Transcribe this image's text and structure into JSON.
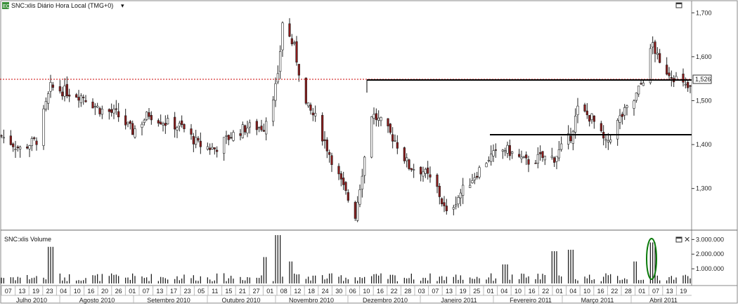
{
  "price_panel": {
    "title": "SNC:xlis Diário Hora Local (TMG+0)",
    "badge": "EQ",
    "current_price_label": "1,526",
    "y_ticks": [
      {
        "value": 1.7,
        "label": "1,700"
      },
      {
        "value": 1.6,
        "label": "1,600"
      },
      {
        "value": 1.5,
        "label": "1,500"
      },
      {
        "value": 1.4,
        "label": "1,400"
      },
      {
        "value": 1.3,
        "label": "1,300"
      }
    ]
  },
  "volume_panel": {
    "title": "SNC:xlis Volume",
    "y_ticks": [
      {
        "value": 3000000,
        "label": "3.000.000"
      },
      {
        "value": 2000000,
        "label": "2.000.000"
      },
      {
        "value": 1000000,
        "label": "1.000.000"
      }
    ]
  },
  "x_axis": {
    "days": [
      "07",
      "13",
      "19",
      "23",
      "04",
      "10",
      "16",
      "20",
      "26",
      "01",
      "07",
      "13",
      "17",
      "23",
      "05",
      "11",
      "15",
      "21",
      "27",
      "01",
      "08",
      "12",
      "18",
      "24",
      "30",
      "06",
      "10",
      "16",
      "22",
      "28",
      "03",
      "07",
      "13",
      "19",
      "25",
      "01",
      "04",
      "10",
      "16",
      "22",
      "01",
      "04",
      "10",
      "16",
      "22",
      "28",
      "01",
      "07",
      "13",
      "19"
    ],
    "months": [
      "Julho 2010",
      "Agosto 2010",
      "Setembro 2010",
      "Outubro 2010",
      "Novembro 2010",
      "Dezembro 2010",
      "Janeiro 2011",
      "Fevereiro 2011",
      "Março 2011",
      "Abril 2011"
    ]
  },
  "chart_data": [
    {
      "type": "candlestick",
      "title": "SNC:xlis Diário Hora Local (TMG+0)",
      "ylim": [
        1.21,
        1.71
      ],
      "current_price": 1.526,
      "reference_lines": [
        {
          "from": "2010-12-06",
          "to": "2011-04-21",
          "value": 1.53
        },
        {
          "from": "2011-02-01",
          "to": "2011-04-21",
          "value": 1.4
        }
      ],
      "closes": [
        [
          "2010-07-01",
          1.42
        ],
        [
          "2010-07-09",
          1.39
        ],
        [
          "2010-07-16",
          1.41
        ],
        [
          "2010-07-22",
          1.53
        ],
        [
          "2010-07-29",
          1.52
        ],
        [
          "2010-08-05",
          1.51
        ],
        [
          "2010-08-12",
          1.48
        ],
        [
          "2010-08-19",
          1.47
        ],
        [
          "2010-08-26",
          1.43
        ],
        [
          "2010-09-02",
          1.47
        ],
        [
          "2010-09-09",
          1.45
        ],
        [
          "2010-09-16",
          1.44
        ],
        [
          "2010-09-23",
          1.4
        ],
        [
          "2010-09-30",
          1.39
        ],
        [
          "2010-10-07",
          1.42
        ],
        [
          "2010-10-14",
          1.44
        ],
        [
          "2010-10-21",
          1.44
        ],
        [
          "2010-10-27",
          1.55
        ],
        [
          "2010-10-29",
          1.68
        ],
        [
          "2010-11-03",
          1.62
        ],
        [
          "2010-11-08",
          1.49
        ],
        [
          "2010-11-12",
          1.46
        ],
        [
          "2010-11-18",
          1.38
        ],
        [
          "2010-11-24",
          1.3
        ],
        [
          "2010-11-29",
          1.24
        ],
        [
          "2010-12-06",
          1.47
        ],
        [
          "2010-12-10",
          1.45
        ],
        [
          "2010-12-16",
          1.41
        ],
        [
          "2010-12-22",
          1.35
        ],
        [
          "2010-12-28",
          1.34
        ],
        [
          "2011-01-03",
          1.3
        ],
        [
          "2011-01-07",
          1.24
        ],
        [
          "2011-01-13",
          1.29
        ],
        [
          "2011-01-19",
          1.33
        ],
        [
          "2011-01-25",
          1.37
        ],
        [
          "2011-02-01",
          1.39
        ],
        [
          "2011-02-04",
          1.38
        ],
        [
          "2011-02-10",
          1.36
        ],
        [
          "2011-02-16",
          1.37
        ],
        [
          "2011-02-22",
          1.37
        ],
        [
          "2011-03-01",
          1.42
        ],
        [
          "2011-03-04",
          1.48
        ],
        [
          "2011-03-10",
          1.46
        ],
        [
          "2011-03-16",
          1.4
        ],
        [
          "2011-03-22",
          1.46
        ],
        [
          "2011-03-28",
          1.5
        ],
        [
          "2011-04-01",
          1.55
        ],
        [
          "2011-04-05",
          1.63
        ],
        [
          "2011-04-08",
          1.58
        ],
        [
          "2011-04-13",
          1.56
        ],
        [
          "2011-04-19",
          1.53
        ],
        [
          "2011-04-21",
          1.526
        ]
      ]
    },
    {
      "type": "bar",
      "title": "SNC:xlis Volume",
      "ylim": [
        0,
        3400000
      ],
      "spikes": [
        [
          "2010-07-22",
          2500000
        ],
        [
          "2010-10-27",
          3300000
        ],
        [
          "2010-10-22",
          1800000
        ],
        [
          "2010-11-01",
          1500000
        ],
        [
          "2011-02-01",
          1300000
        ],
        [
          "2011-02-22",
          2200000
        ],
        [
          "2011-03-01",
          2300000
        ],
        [
          "2011-03-28",
          1500000
        ],
        [
          "2011-04-05",
          2800000
        ]
      ],
      "baseline": 500000
    }
  ]
}
